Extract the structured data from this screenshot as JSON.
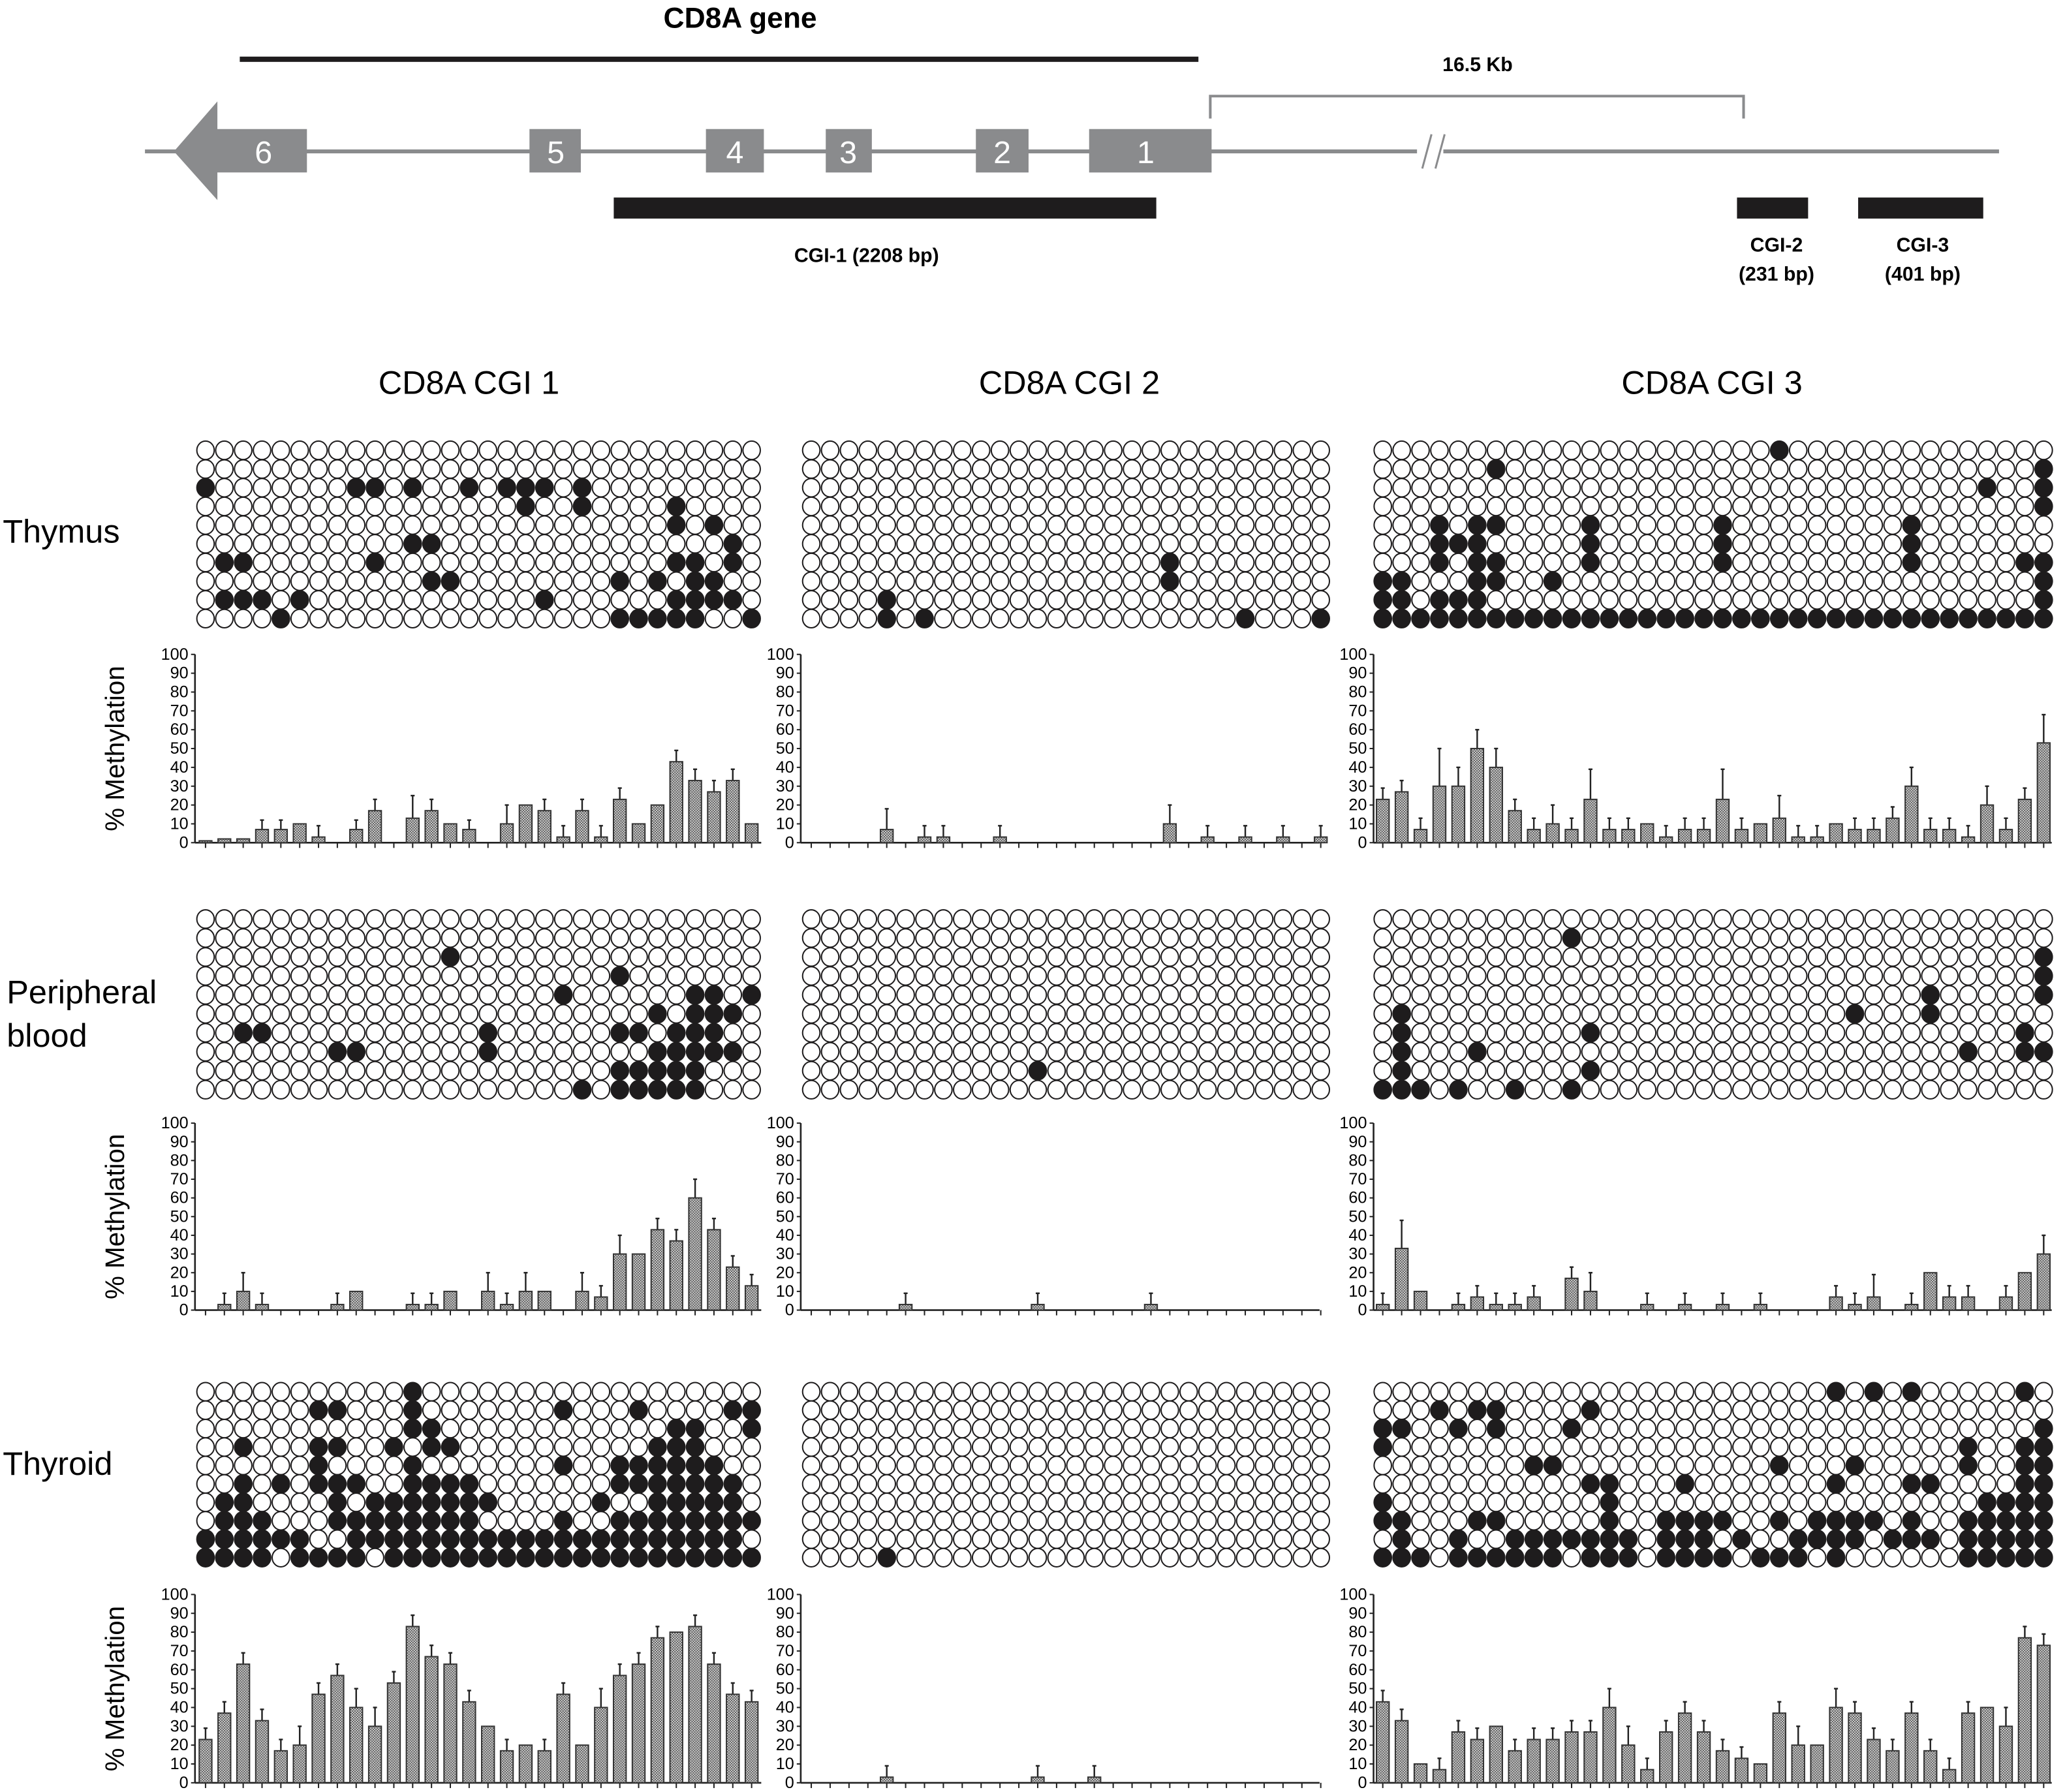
{
  "gene_map": {
    "title": "CD8A gene",
    "distance_label": "16.5 Kb",
    "exons": [
      "6",
      "5",
      "4",
      "3",
      "2",
      "1"
    ],
    "cgi1_label": "CGI-1 (2208 bp)",
    "cgi2_label": [
      "CGI-2",
      "(231 bp)"
    ],
    "cgi3_label": [
      "CGI-3",
      "(401 bp)"
    ],
    "colors": {
      "exon": "#8a8b8d",
      "cgi_bar": "#1e1c1d",
      "line": "#8a8b8d"
    }
  },
  "column_headers": [
    "CD8A CGI 1",
    "CD8A CGI 2",
    "CD8A CGI 3"
  ],
  "tissues": [
    {
      "label_lines": [
        "Thymus"
      ]
    },
    {
      "label_lines": [
        "Peripheral",
        "blood"
      ]
    },
    {
      "label_lines": [
        "Thyroid"
      ]
    }
  ],
  "y_axis_label": "% Methylation",
  "matrices": [
    {
      "tissue": "Thymus",
      "cgi": "CD8A CGI 1",
      "ncols": 30,
      "methylated_by_row": [
        [],
        [],
        [
          1,
          9,
          10,
          12,
          15,
          17,
          18,
          19,
          21
        ],
        [
          18,
          21,
          26
        ],
        [
          26,
          28
        ],
        [
          12,
          13,
          29
        ],
        [
          2,
          3,
          10,
          26,
          27,
          29
        ],
        [
          13,
          14,
          23,
          25,
          27,
          28
        ],
        [
          2,
          3,
          4,
          6,
          19,
          26,
          27,
          28,
          29
        ],
        [
          5,
          23,
          24,
          25,
          26,
          27,
          30
        ]
      ]
    },
    {
      "tissue": "Thymus",
      "cgi": "CD8A CGI 2",
      "ncols": 28,
      "methylated_by_row": [
        [],
        [],
        [],
        [],
        [],
        [],
        [
          20
        ],
        [
          20
        ],
        [
          5
        ],
        [
          5,
          7,
          24,
          28
        ]
      ]
    },
    {
      "tissue": "Thymus",
      "cgi": "CD8A CGI 3",
      "ncols": 36,
      "methylated_by_row": [
        [
          22
        ],
        [
          7,
          36
        ],
        [
          33,
          36
        ],
        [
          36
        ],
        [
          4,
          6,
          7,
          12,
          19,
          29
        ],
        [
          4,
          5,
          6,
          12,
          19,
          29
        ],
        [
          4,
          6,
          7,
          12,
          19,
          29,
          35,
          36
        ],
        [
          1,
          2,
          6,
          7,
          10,
          36
        ],
        [
          1,
          2,
          4,
          5,
          6,
          36
        ],
        [
          1,
          2,
          3,
          4,
          5,
          6,
          7,
          8,
          9,
          10,
          11,
          12,
          13,
          14,
          15,
          16,
          17,
          18,
          19,
          20,
          21,
          22,
          23,
          24,
          25,
          26,
          27,
          28,
          29,
          30,
          31,
          32,
          33,
          34,
          35,
          36
        ]
      ]
    },
    {
      "tissue": "Peripheral blood",
      "cgi": "CD8A CGI 1",
      "ncols": 30,
      "methylated_by_row": [
        [],
        [],
        [
          14
        ],
        [
          23
        ],
        [
          20,
          27,
          28,
          30
        ],
        [
          25,
          27,
          28,
          29
        ],
        [
          3,
          4,
          16,
          23,
          24,
          26,
          27,
          28
        ],
        [
          8,
          9,
          16,
          25,
          26,
          27,
          28,
          29
        ],
        [
          23,
          24,
          25,
          26,
          27
        ],
        [
          21,
          23,
          24,
          25,
          26,
          27
        ]
      ]
    },
    {
      "tissue": "Peripheral blood",
      "cgi": "CD8A CGI 2",
      "ncols": 28,
      "methylated_by_row": [
        [],
        [],
        [],
        [],
        [],
        [],
        [],
        [],
        [
          13
        ],
        []
      ]
    },
    {
      "tissue": "Peripheral blood",
      "cgi": "CD8A CGI 3",
      "ncols": 36,
      "methylated_by_row": [
        [],
        [
          11
        ],
        [
          36
        ],
        [
          36
        ],
        [
          30,
          36
        ],
        [
          2,
          26,
          30
        ],
        [
          2,
          12,
          35
        ],
        [
          2,
          6,
          32,
          35,
          36
        ],
        [
          2,
          12
        ],
        [
          1,
          2,
          3,
          5,
          8,
          11
        ]
      ]
    },
    {
      "tissue": "Thyroid",
      "cgi": "CD8A CGI 1",
      "ncols": 30,
      "methylated_by_row": [
        [
          12
        ],
        [
          7,
          8,
          12,
          20,
          24,
          29,
          30
        ],
        [
          12,
          13,
          26,
          27,
          30
        ],
        [
          3,
          7,
          8,
          11,
          13,
          14,
          25,
          26,
          27
        ],
        [
          7,
          12,
          20,
          23,
          24,
          25,
          26,
          27,
          28
        ],
        [
          3,
          5,
          7,
          8,
          9,
          12,
          13,
          14,
          15,
          23,
          24,
          25,
          26,
          27,
          28,
          29
        ],
        [
          2,
          3,
          8,
          10,
          11,
          12,
          13,
          14,
          15,
          16,
          22,
          25,
          26,
          27,
          28,
          29
        ],
        [
          2,
          3,
          4,
          8,
          9,
          10,
          11,
          12,
          13,
          14,
          15,
          20,
          23,
          24,
          25,
          26,
          27,
          28,
          29,
          30
        ],
        [
          1,
          2,
          3,
          4,
          5,
          6,
          9,
          10,
          11,
          12,
          13,
          14,
          15,
          16,
          17,
          18,
          19,
          20,
          21,
          22,
          23,
          24,
          25,
          26,
          27,
          28,
          29
        ],
        [
          1,
          2,
          3,
          4,
          6,
          7,
          8,
          9,
          11,
          12,
          13,
          14,
          15,
          16,
          17,
          18,
          19,
          20,
          21,
          22,
          23,
          24,
          25,
          26,
          27,
          28,
          29,
          30
        ]
      ]
    },
    {
      "tissue": "Thyroid",
      "cgi": "CD8A CGI 2",
      "ncols": 28,
      "methylated_by_row": [
        [],
        [],
        [],
        [],
        [],
        [],
        [],
        [],
        [],
        [
          5
        ]
      ]
    },
    {
      "tissue": "Thyroid",
      "cgi": "CD8A CGI 3",
      "ncols": 36,
      "methylated_by_row": [
        [
          25,
          27,
          29,
          35
        ],
        [
          4,
          6,
          7,
          12
        ],
        [
          1,
          2,
          5,
          7,
          11,
          36
        ],
        [
          1,
          32,
          35,
          36
        ],
        [
          9,
          10,
          22,
          26,
          32,
          35,
          36
        ],
        [
          12,
          13,
          17,
          25,
          29,
          30,
          35,
          36
        ],
        [
          1,
          13,
          33,
          34,
          35,
          36
        ],
        [
          1,
          2,
          6,
          7,
          13,
          16,
          17,
          18,
          19,
          22,
          24,
          25,
          26,
          27,
          29,
          32,
          33,
          34,
          35,
          36
        ],
        [
          2,
          5,
          8,
          9,
          10,
          11,
          12,
          13,
          14,
          16,
          17,
          18,
          20,
          23,
          24,
          25,
          26,
          28,
          29,
          30,
          32,
          33,
          34,
          35,
          36
        ],
        [
          1,
          2,
          3,
          5,
          6,
          7,
          8,
          9,
          10,
          12,
          13,
          14,
          16,
          17,
          18,
          19,
          21,
          22,
          23,
          25,
          32,
          33,
          34,
          35,
          36
        ]
      ]
    }
  ],
  "chart_data": [
    {
      "type": "bar",
      "tissue": "Thymus",
      "cgi": "CD8A CGI 1",
      "ylabel": "% Methylation",
      "ylim": [
        0,
        100
      ],
      "yticks": [
        "100",
        "90",
        "80",
        "70",
        "60",
        "50",
        "40",
        "30",
        "20",
        "10",
        "0"
      ],
      "grid": false,
      "values": [
        1,
        2,
        2,
        7,
        7,
        10,
        3,
        0,
        7,
        17,
        0,
        13,
        17,
        10,
        7,
        0,
        10,
        20,
        17,
        3,
        17,
        3,
        23,
        10,
        20,
        43,
        33,
        27,
        33,
        10
      ],
      "errors": [
        0,
        0,
        0,
        5,
        5,
        0,
        6,
        0,
        5,
        6,
        0,
        12,
        6,
        0,
        5,
        0,
        10,
        0,
        6,
        6,
        6,
        6,
        6,
        0,
        0,
        6,
        6,
        6,
        6,
        0
      ]
    },
    {
      "type": "bar",
      "tissue": "Thymus",
      "cgi": "CD8A CGI 2",
      "ylabel": "% Methylation",
      "ylim": [
        0,
        100
      ],
      "yticks": [
        "100",
        "90",
        "80",
        "70",
        "60",
        "50",
        "40",
        "30",
        "20",
        "10",
        "0"
      ],
      "grid": false,
      "values": [
        0,
        0,
        0,
        0,
        7,
        0,
        3,
        3,
        0,
        0,
        3,
        0,
        0,
        0,
        0,
        0,
        0,
        0,
        0,
        10,
        0,
        3,
        0,
        3,
        0,
        3,
        0,
        3
      ],
      "errors": [
        0,
        0,
        0,
        0,
        11,
        0,
        6,
        6,
        0,
        0,
        6,
        0,
        0,
        0,
        0,
        0,
        0,
        0,
        0,
        10,
        0,
        6,
        0,
        6,
        0,
        6,
        0,
        6
      ]
    },
    {
      "type": "bar",
      "tissue": "Thymus",
      "cgi": "CD8A CGI 3",
      "ylabel": "% Methylation",
      "ylim": [
        0,
        100
      ],
      "yticks": [
        "100",
        "90",
        "80",
        "70",
        "60",
        "50",
        "40",
        "30",
        "20",
        "10",
        "0"
      ],
      "grid": false,
      "values": [
        23,
        27,
        7,
        30,
        30,
        50,
        40,
        17,
        7,
        10,
        7,
        23,
        7,
        7,
        10,
        3,
        7,
        7,
        23,
        7,
        10,
        13,
        3,
        3,
        10,
        7,
        7,
        13,
        30,
        7,
        7,
        3,
        20,
        7,
        23,
        53
      ],
      "errors": [
        6,
        6,
        6,
        20,
        10,
        10,
        10,
        6,
        6,
        10,
        6,
        16,
        6,
        6,
        0,
        6,
        6,
        6,
        16,
        6,
        0,
        12,
        6,
        6,
        0,
        6,
        6,
        6,
        10,
        6,
        6,
        6,
        10,
        6,
        6,
        15
      ]
    },
    {
      "type": "bar",
      "tissue": "Peripheral blood",
      "cgi": "CD8A CGI 1",
      "ylabel": "% Methylation",
      "ylim": [
        0,
        100
      ],
      "yticks": [
        "100",
        "90",
        "80",
        "70",
        "60",
        "50",
        "40",
        "30",
        "20",
        "10",
        "0"
      ],
      "grid": false,
      "values": [
        0,
        3,
        10,
        3,
        0,
        0,
        0,
        3,
        10,
        0,
        0,
        3,
        3,
        10,
        0,
        10,
        3,
        10,
        10,
        0,
        10,
        7,
        30,
        30,
        43,
        37,
        60,
        43,
        23,
        13
      ],
      "errors": [
        0,
        6,
        10,
        6,
        0,
        0,
        0,
        6,
        0,
        0,
        0,
        6,
        6,
        0,
        0,
        10,
        6,
        10,
        0,
        0,
        10,
        6,
        10,
        0,
        6,
        6,
        10,
        6,
        6,
        6
      ]
    },
    {
      "type": "bar",
      "tissue": "Peripheral blood",
      "cgi": "CD8A CGI 2",
      "ylabel": "% Methylation",
      "ylim": [
        0,
        100
      ],
      "yticks": [
        "100",
        "90",
        "80",
        "70",
        "60",
        "50",
        "40",
        "30",
        "20",
        "10",
        "0"
      ],
      "grid": false,
      "values": [
        0,
        0,
        0,
        0,
        0,
        3,
        0,
        0,
        0,
        0,
        0,
        0,
        3,
        0,
        0,
        0,
        0,
        0,
        3,
        0,
        0,
        0,
        0,
        0,
        0,
        0,
        0,
        0
      ],
      "errors": [
        0,
        0,
        0,
        0,
        0,
        6,
        0,
        0,
        0,
        0,
        0,
        0,
        6,
        0,
        0,
        0,
        0,
        0,
        6,
        0,
        0,
        0,
        0,
        0,
        0,
        0,
        0,
        0
      ]
    },
    {
      "type": "bar",
      "tissue": "Peripheral blood",
      "cgi": "CD8A CGI 3",
      "ylabel": "% Methylation",
      "ylim": [
        0,
        100
      ],
      "yticks": [
        "100",
        "90",
        "80",
        "70",
        "60",
        "50",
        "40",
        "30",
        "20",
        "10",
        "0"
      ],
      "grid": false,
      "values": [
        3,
        33,
        10,
        0,
        3,
        7,
        3,
        3,
        7,
        0,
        17,
        10,
        0,
        0,
        3,
        0,
        3,
        0,
        3,
        0,
        3,
        0,
        0,
        0,
        7,
        3,
        7,
        0,
        3,
        20,
        7,
        7,
        0,
        7,
        20,
        30
      ],
      "errors": [
        6,
        15,
        0,
        0,
        6,
        6,
        6,
        6,
        6,
        0,
        6,
        10,
        0,
        0,
        6,
        0,
        6,
        0,
        6,
        0,
        6,
        0,
        0,
        0,
        6,
        6,
        12,
        0,
        6,
        0,
        6,
        6,
        0,
        6,
        0,
        10
      ]
    },
    {
      "type": "bar",
      "tissue": "Thyroid",
      "cgi": "CD8A CGI 1",
      "ylabel": "% Methylation",
      "ylim": [
        0,
        100
      ],
      "yticks": [
        "100",
        "90",
        "80",
        "70",
        "60",
        "50",
        "40",
        "30",
        "20",
        "10",
        "0"
      ],
      "grid": false,
      "values": [
        23,
        37,
        63,
        33,
        17,
        20,
        47,
        57,
        40,
        30,
        53,
        83,
        67,
        63,
        43,
        30,
        17,
        20,
        17,
        47,
        20,
        40,
        57,
        63,
        77,
        80,
        83,
        63,
        47,
        43
      ],
      "errors": [
        6,
        6,
        6,
        6,
        6,
        10,
        6,
        6,
        10,
        10,
        6,
        6,
        6,
        6,
        6,
        0,
        6,
        0,
        6,
        6,
        0,
        10,
        6,
        6,
        6,
        0,
        6,
        6,
        6,
        6
      ]
    },
    {
      "type": "bar",
      "tissue": "Thyroid",
      "cgi": "CD8A CGI 2",
      "ylabel": "% Methylation",
      "ylim": [
        0,
        100
      ],
      "yticks": [
        "100",
        "90",
        "80",
        "70",
        "60",
        "50",
        "40",
        "30",
        "20",
        "10",
        "0"
      ],
      "grid": false,
      "values": [
        0,
        0,
        0,
        0,
        3,
        0,
        0,
        0,
        0,
        0,
        0,
        0,
        3,
        0,
        0,
        3,
        0,
        0,
        0,
        0,
        0,
        0,
        0,
        0,
        0,
        0,
        0,
        0
      ],
      "errors": [
        0,
        0,
        0,
        0,
        6,
        0,
        0,
        0,
        0,
        0,
        0,
        0,
        6,
        0,
        0,
        6,
        0,
        0,
        0,
        0,
        0,
        0,
        0,
        0,
        0,
        0,
        0,
        0
      ]
    },
    {
      "type": "bar",
      "tissue": "Thyroid",
      "cgi": "CD8A CGI 3",
      "ylabel": "% Methylation",
      "ylim": [
        0,
        100
      ],
      "yticks": [
        "100",
        "90",
        "80",
        "70",
        "60",
        "50",
        "40",
        "30",
        "20",
        "10",
        "0"
      ],
      "grid": false,
      "values": [
        43,
        33,
        10,
        7,
        27,
        23,
        30,
        17,
        23,
        23,
        27,
        27,
        40,
        20,
        7,
        27,
        37,
        27,
        17,
        13,
        10,
        37,
        20,
        20,
        40,
        37,
        23,
        17,
        37,
        17,
        7,
        37,
        40,
        30,
        77,
        73
      ],
      "errors": [
        6,
        6,
        0,
        6,
        6,
        6,
        0,
        6,
        6,
        6,
        6,
        6,
        10,
        10,
        6,
        6,
        6,
        6,
        6,
        6,
        0,
        6,
        10,
        0,
        10,
        6,
        6,
        6,
        6,
        6,
        6,
        6,
        0,
        10,
        6,
        6
      ]
    }
  ]
}
